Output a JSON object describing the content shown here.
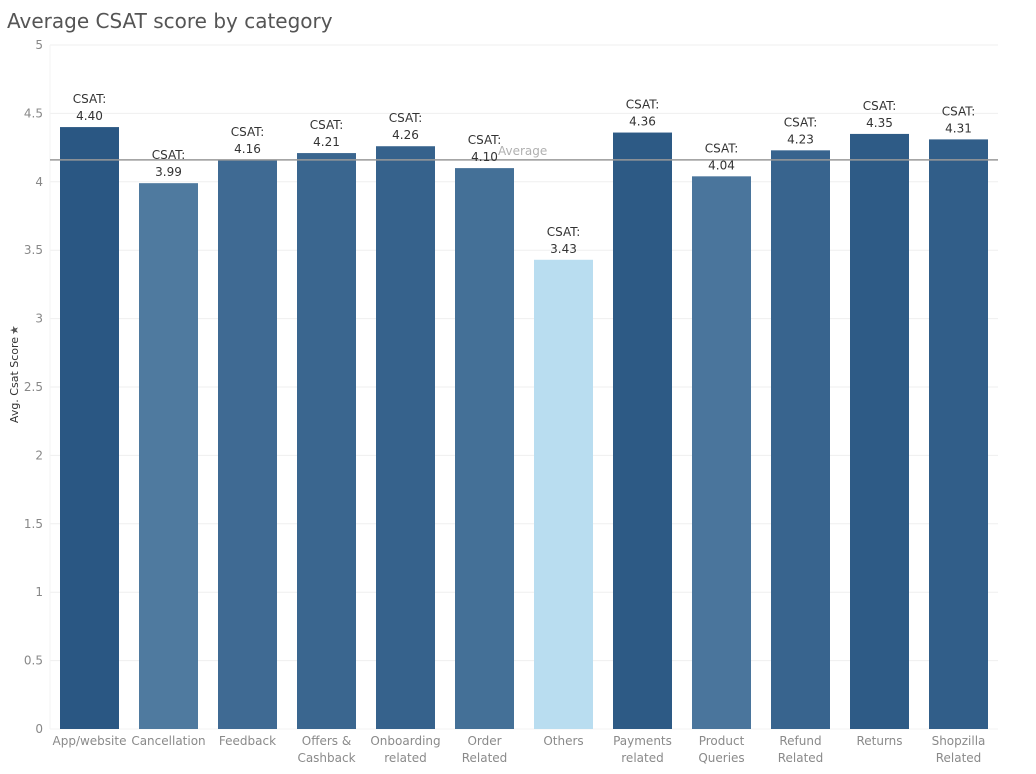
{
  "chart_data": {
    "type": "bar",
    "title": "Average CSAT score by category",
    "xlabel": "",
    "ylabel": "Avg. Csat Score",
    "categories": [
      [
        "App/website"
      ],
      [
        "Cancellation"
      ],
      [
        "Feedback"
      ],
      [
        "Offers &",
        "Cashback"
      ],
      [
        "Onboarding",
        "related"
      ],
      [
        "Order",
        "Related"
      ],
      [
        "Others"
      ],
      [
        "Payments",
        "related"
      ],
      [
        "Product",
        "Queries"
      ],
      [
        "Refund",
        "Related"
      ],
      [
        "Returns"
      ],
      [
        "Shopzilla",
        "Related"
      ]
    ],
    "values": [
      4.4,
      3.99,
      4.16,
      4.21,
      4.26,
      4.1,
      3.43,
      4.36,
      4.04,
      4.23,
      4.35,
      4.31
    ],
    "label_prefix": "CSAT:",
    "ylim": [
      0,
      5
    ],
    "yticks": [
      0,
      0.5,
      1,
      1.5,
      2,
      2.5,
      3,
      3.5,
      4,
      4.5,
      5
    ],
    "ytick_labels": [
      "0",
      "0.5",
      "1",
      "1.5",
      "2",
      "2.5",
      "3",
      "3.5",
      "4",
      "4.5",
      "5"
    ],
    "reference_line": {
      "label": "Average",
      "value": 4.16
    },
    "grid": true,
    "legend": "none",
    "colors": {
      "bar_min": "#b9ddf0",
      "bar_max": "#2a5783",
      "grid": "#efefef",
      "reference_line": "#999999"
    }
  }
}
